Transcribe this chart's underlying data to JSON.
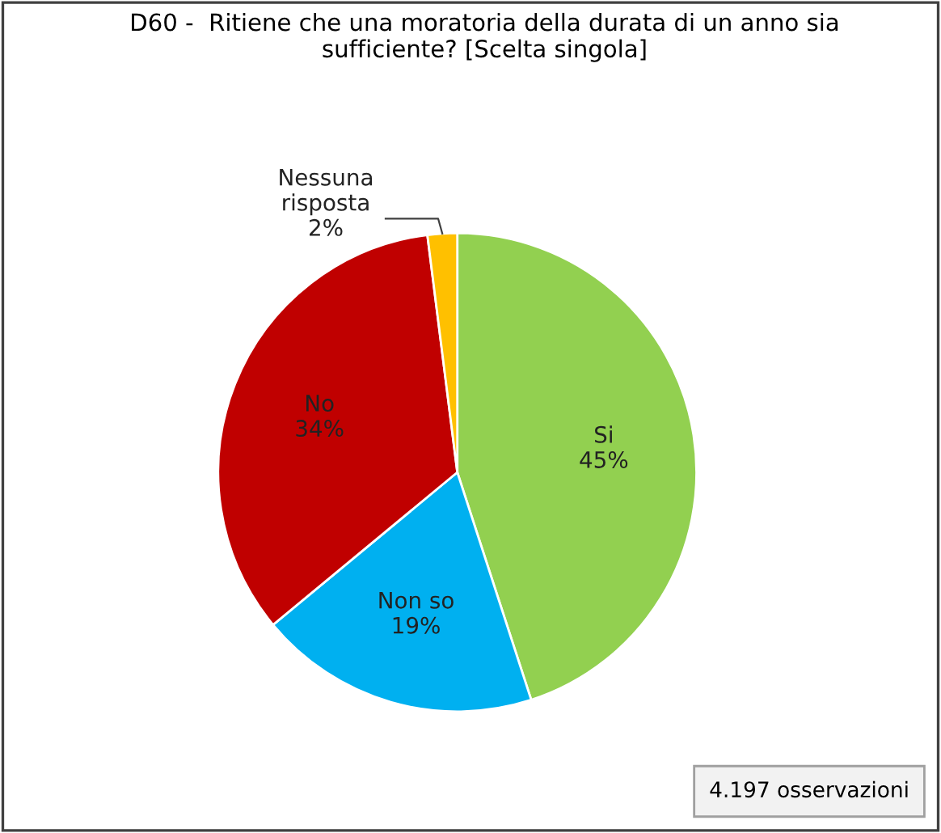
{
  "chart_data": {
    "type": "pie",
    "title": "D60 -  Ritiene che una moratoria della durata di un anno sia\nsufficiente? [Scelta singola]",
    "categories": [
      "Si",
      "Non so",
      "No",
      "Nessuna\nrisposta"
    ],
    "values": [
      45,
      19,
      34,
      2
    ],
    "value_labels": [
      "45%",
      "19%",
      "34%",
      "2%"
    ],
    "colors": [
      "#92d050",
      "#00b0f0",
      "#c00000",
      "#ffc000"
    ],
    "annotations": [
      "4.197 osservazioni"
    ],
    "legend": false
  }
}
